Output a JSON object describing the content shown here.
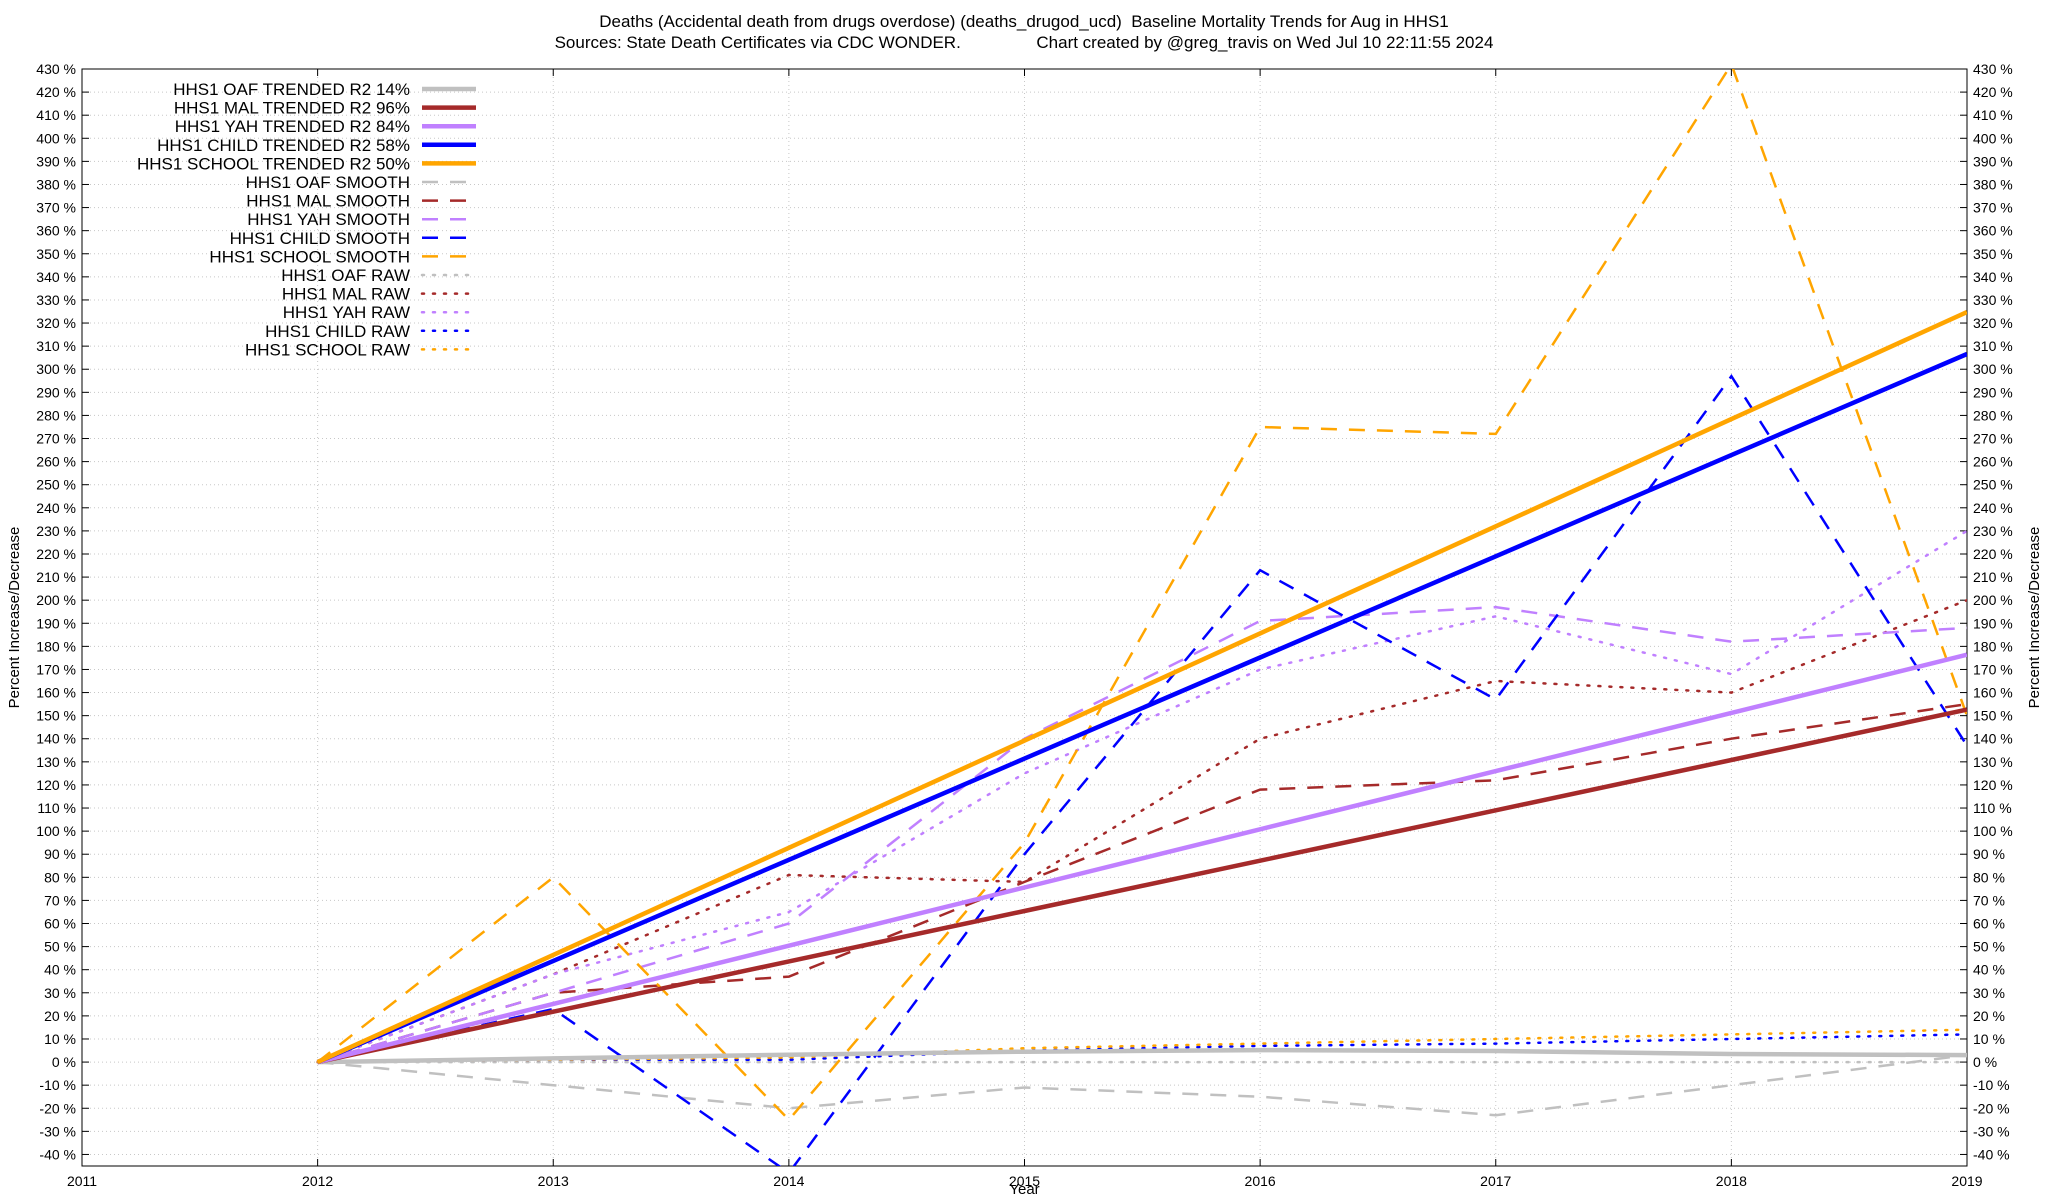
{
  "chart_data": {
    "type": "line",
    "title_line1": "Deaths (Accidental death from drugs overdose) (deaths_drugod_ucd)  Baseline Mortality Trends for Aug in HHS1",
    "title_line2": "Sources: State Death Certificates via CDC WONDER.                Chart created by @greg_travis on Wed Jul 10 22:11:55 2024",
    "xlabel": "Year",
    "ylabel_left": "Percent Increase/Decrease",
    "ylabel_right": "Percent Increase/Decrease",
    "xlim": [
      2011,
      2019
    ],
    "ylim": [
      -45,
      430
    ],
    "x_ticks": [
      2011,
      2012,
      2013,
      2014,
      2015,
      2016,
      2017,
      2018,
      2019
    ],
    "y_ticks": [
      -40,
      -30,
      -20,
      -10,
      0,
      10,
      20,
      30,
      40,
      50,
      60,
      70,
      80,
      90,
      100,
      110,
      120,
      130,
      140,
      150,
      160,
      170,
      180,
      190,
      200,
      210,
      220,
      230,
      240,
      250,
      260,
      270,
      280,
      290,
      300,
      310,
      320,
      330,
      340,
      350,
      360,
      370,
      380,
      390,
      400,
      410,
      420,
      430
    ],
    "y_tick_suffix": " %",
    "grid": true,
    "legend_position": "top-left",
    "x": [
      2012,
      2013,
      2014,
      2015,
      2016,
      2017,
      2018,
      2019
    ],
    "series": [
      {
        "name": "HHS1 OAF TRENDED R2  14%",
        "style": "trend",
        "color": "#c0c0c0",
        "values": [
          0,
          1.6,
          3.2,
          4.5,
          5.2,
          4.8,
          3.5,
          3
        ]
      },
      {
        "name": "HHS1 MAL TRENDED R2  96%",
        "style": "trend",
        "color": "#a52a2a",
        "values": [
          0,
          21.8,
          43.6,
          65.4,
          87.2,
          109,
          130.8,
          152.6
        ]
      },
      {
        "name": "HHS1 YAH TRENDED R2  84%",
        "style": "trend",
        "color": "#c080ff",
        "values": [
          0,
          25.2,
          50.4,
          75.6,
          100.8,
          126,
          151.2,
          176.4
        ]
      },
      {
        "name": "HHS1 CHILD TRENDED R2  58%",
        "style": "trend",
        "color": "#0000ff",
        "values": [
          0,
          43.8,
          87.6,
          131.4,
          175.2,
          219,
          262.8,
          306.6
        ]
      },
      {
        "name": "HHS1 SCHOOL TRENDED R2  50%",
        "style": "trend",
        "color": "#ffa500",
        "values": [
          0,
          46.4,
          92.8,
          139.2,
          185.6,
          232,
          278.4,
          324.8
        ]
      },
      {
        "name": "HHS1 OAF SMOOTH",
        "style": "smooth",
        "color": "#c0c0c0",
        "values": [
          0,
          -10,
          -20,
          -11,
          -15,
          -23,
          -10,
          3
        ]
      },
      {
        "name": "HHS1 MAL SMOOTH",
        "style": "smooth",
        "color": "#a52a2a",
        "values": [
          0,
          30,
          37,
          78,
          118,
          122,
          140,
          155
        ]
      },
      {
        "name": "HHS1 YAH SMOOTH",
        "style": "smooth",
        "color": "#c080ff",
        "values": [
          0,
          30,
          60,
          140,
          191,
          197,
          182,
          188
        ]
      },
      {
        "name": "HHS1 CHILD SMOOTH",
        "style": "smooth",
        "color": "#0000ff",
        "values": [
          0,
          23,
          -48,
          90,
          213,
          157,
          297,
          137
        ]
      },
      {
        "name": "HHS1 SCHOOL SMOOTH",
        "style": "smooth",
        "color": "#ffa500",
        "values": [
          0,
          80,
          -25,
          95,
          275,
          272,
          432,
          150
        ]
      },
      {
        "name": "HHS1 OAF RAW",
        "style": "raw",
        "color": "#c0c0c0",
        "values": [
          0,
          0,
          0,
          0,
          0,
          0,
          0,
          0
        ]
      },
      {
        "name": "HHS1 MAL RAW",
        "style": "raw",
        "color": "#a52a2a",
        "values": [
          0,
          38,
          81,
          78,
          140,
          165,
          160,
          200
        ]
      },
      {
        "name": "HHS1 YAH RAW",
        "style": "raw",
        "color": "#c080ff",
        "values": [
          0,
          38,
          65,
          125,
          170,
          193,
          168,
          230
        ]
      },
      {
        "name": "HHS1 CHILD RAW",
        "style": "raw",
        "color": "#0000ff",
        "values": [
          0,
          1,
          1,
          5,
          7,
          8,
          10,
          12
        ]
      },
      {
        "name": "HHS1 SCHOOL RAW",
        "style": "raw",
        "color": "#ffa500",
        "values": [
          0,
          1,
          2,
          6,
          8,
          10,
          12,
          14
        ]
      }
    ]
  }
}
